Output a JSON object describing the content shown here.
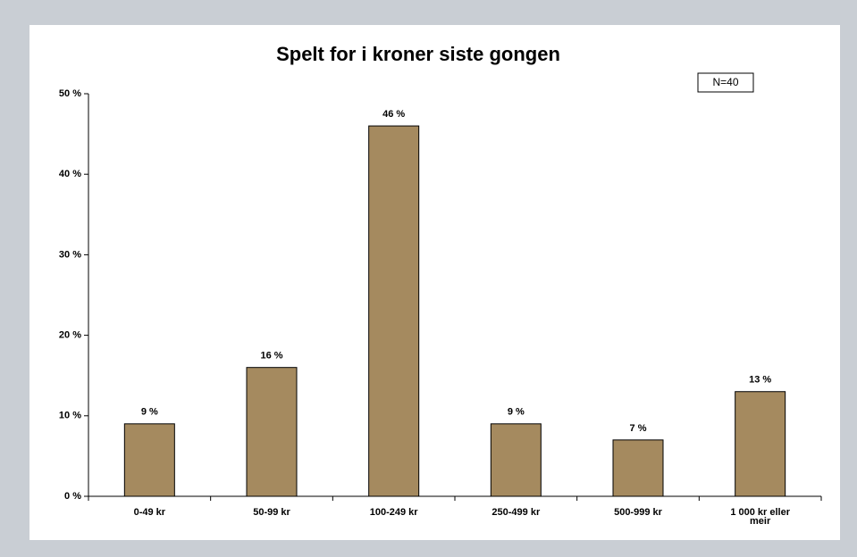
{
  "chart_data": {
    "type": "bar",
    "title": "Spelt for i kroner siste gongen",
    "annotation": "N=40",
    "categories": [
      "0-49 kr",
      "50-99 kr",
      "100-249 kr",
      "250-499 kr",
      "500-999 kr",
      "1 000 kr eller meir"
    ],
    "values": [
      9,
      16,
      46,
      9,
      7,
      13
    ],
    "value_labels": [
      "9 %",
      "16 %",
      "46 %",
      "9 %",
      "7 %",
      "13 %"
    ],
    "color": "#a58a5f",
    "ylim": [
      0,
      50
    ],
    "yticks": [
      {
        "value": 0,
        "label": "0 %"
      },
      {
        "value": 10,
        "label": "10 %"
      },
      {
        "value": 20,
        "label": "20 %"
      },
      {
        "value": 30,
        "label": "30 %"
      },
      {
        "value": 40,
        "label": "40 %"
      },
      {
        "value": 50,
        "label": "50 %"
      }
    ],
    "grid": false
  }
}
